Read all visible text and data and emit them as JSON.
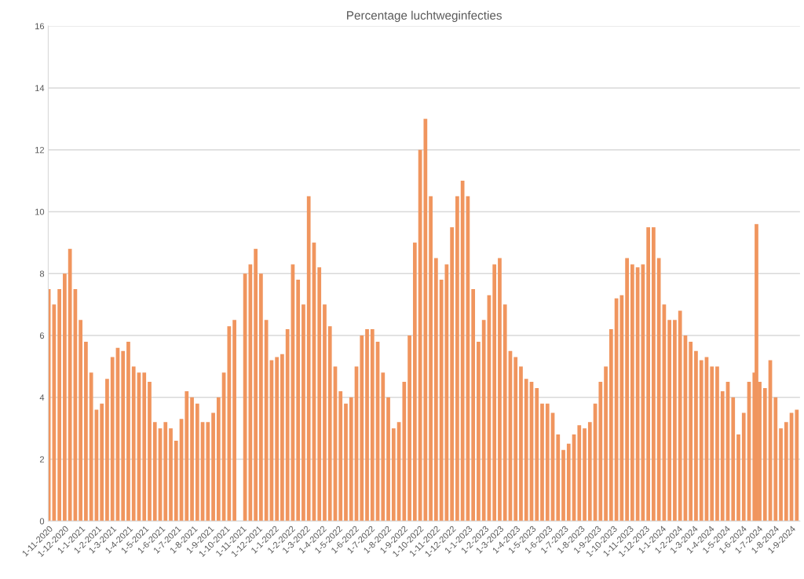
{
  "chart_data": {
    "type": "bar",
    "title": "Percentage luchtweginfecties",
    "color": "#f0955e",
    "grid": "y",
    "ylim": [
      0,
      16
    ],
    "yticks": [
      0,
      2,
      4,
      6,
      8,
      10,
      12,
      14,
      16
    ],
    "xlim": [
      "2020-10-31",
      "2024-09-17"
    ],
    "xticks": [
      {
        "value": "2020-11-01",
        "label": "1-11-2020"
      },
      {
        "value": "2020-12-01",
        "label": "1-12-2020"
      },
      {
        "value": "2021-01-01",
        "label": "1-1-2021"
      },
      {
        "value": "2021-02-01",
        "label": "1-2-2021"
      },
      {
        "value": "2021-03-01",
        "label": "1-3-2021"
      },
      {
        "value": "2021-04-01",
        "label": "1-4-2021"
      },
      {
        "value": "2021-05-01",
        "label": "1-5-2021"
      },
      {
        "value": "2021-06-01",
        "label": "1-6-2021"
      },
      {
        "value": "2021-07-01",
        "label": "1-7-2021"
      },
      {
        "value": "2021-08-01",
        "label": "1-8-2021"
      },
      {
        "value": "2021-09-01",
        "label": "1-9-2021"
      },
      {
        "value": "2021-10-01",
        "label": "1-10-2021"
      },
      {
        "value": "2021-11-01",
        "label": "1-11-2021"
      },
      {
        "value": "2021-12-01",
        "label": "1-12-2021"
      },
      {
        "value": "2022-01-01",
        "label": "1-1-2022"
      },
      {
        "value": "2022-02-01",
        "label": "1-2-2022"
      },
      {
        "value": "2022-03-01",
        "label": "1-3-2022"
      },
      {
        "value": "2022-04-01",
        "label": "1-4-2022"
      },
      {
        "value": "2022-05-01",
        "label": "1-5-2022"
      },
      {
        "value": "2022-06-01",
        "label": "1-6-2022"
      },
      {
        "value": "2022-07-01",
        "label": "1-7-2022"
      },
      {
        "value": "2022-08-01",
        "label": "1-8-2022"
      },
      {
        "value": "2022-09-01",
        "label": "1-9-2022"
      },
      {
        "value": "2022-10-01",
        "label": "1-10-2022"
      },
      {
        "value": "2022-11-01",
        "label": "1-11-2022"
      },
      {
        "value": "2022-12-01",
        "label": "1-12-2022"
      },
      {
        "value": "2023-01-01",
        "label": "1-1-2023"
      },
      {
        "value": "2023-02-01",
        "label": "1-2-2023"
      },
      {
        "value": "2023-03-01",
        "label": "1-3-2023"
      },
      {
        "value": "2023-04-01",
        "label": "1-4-2023"
      },
      {
        "value": "2023-05-01",
        "label": "1-5-2023"
      },
      {
        "value": "2023-06-01",
        "label": "1-6-2023"
      },
      {
        "value": "2023-07-01",
        "label": "1-7-2023"
      },
      {
        "value": "2023-08-01",
        "label": "1-8-2023"
      },
      {
        "value": "2023-09-01",
        "label": "1-9-2023"
      },
      {
        "value": "2023-10-01",
        "label": "1-10-2023"
      },
      {
        "value": "2023-11-01",
        "label": "1-11-2023"
      },
      {
        "value": "2023-12-01",
        "label": "1-12-2023"
      },
      {
        "value": "2024-01-01",
        "label": "1-1-2024"
      },
      {
        "value": "2024-02-01",
        "label": "1-2-2024"
      },
      {
        "value": "2024-03-01",
        "label": "1-3-2024"
      },
      {
        "value": "2024-04-01",
        "label": "1-4-2024"
      },
      {
        "value": "2024-05-01",
        "label": "1-5-2024"
      },
      {
        "value": "2024-06-01",
        "label": "1-6-2024"
      },
      {
        "value": "2024-07-01",
        "label": "1-7-2024"
      },
      {
        "value": "2024-08-01",
        "label": "1-8-2024"
      },
      {
        "value": "2024-09-01",
        "label": "1-9-2024"
      }
    ],
    "x": [
      "2020-11-01",
      "2020-11-11",
      "2020-11-21",
      "2020-12-01",
      "2020-12-11",
      "2020-12-21",
      "2020-12-31",
      "2021-01-10",
      "2021-01-20",
      "2021-01-30",
      "2021-02-09",
      "2021-02-19",
      "2021-03-01",
      "2021-03-11",
      "2021-03-21",
      "2021-03-31",
      "2021-04-10",
      "2021-04-20",
      "2021-04-30",
      "2021-05-10",
      "2021-05-20",
      "2021-05-30",
      "2021-06-09",
      "2021-06-19",
      "2021-06-29",
      "2021-07-09",
      "2021-07-19",
      "2021-07-29",
      "2021-08-08",
      "2021-08-18",
      "2021-08-28",
      "2021-09-07",
      "2021-09-17",
      "2021-09-27",
      "2021-10-07",
      "2021-10-17",
      "2021-10-27",
      "2021-11-06",
      "2021-11-16",
      "2021-11-26",
      "2021-12-06",
      "2021-12-16",
      "2021-12-26",
      "2022-01-05",
      "2022-01-15",
      "2022-01-25",
      "2022-02-04",
      "2022-02-14",
      "2022-02-24",
      "2022-03-06",
      "2022-03-16",
      "2022-03-26",
      "2022-04-05",
      "2022-04-15",
      "2022-04-25",
      "2022-05-05",
      "2022-05-15",
      "2022-05-25",
      "2022-06-04",
      "2022-06-14",
      "2022-06-24",
      "2022-07-04",
      "2022-07-14",
      "2022-07-24",
      "2022-08-03",
      "2022-08-13",
      "2022-08-23",
      "2022-09-02",
      "2022-09-12",
      "2022-09-22",
      "2022-10-02",
      "2022-10-12",
      "2022-10-22",
      "2022-11-01",
      "2022-11-11",
      "2022-11-21",
      "2022-12-01",
      "2022-12-11",
      "2022-12-21",
      "2022-12-31",
      "2023-01-10",
      "2023-01-20",
      "2023-01-30",
      "2023-02-09",
      "2023-02-19",
      "2023-03-01",
      "2023-03-11",
      "2023-03-21",
      "2023-03-31",
      "2023-04-10",
      "2023-04-20",
      "2023-04-30",
      "2023-05-10",
      "2023-05-20",
      "2023-05-30",
      "2023-06-09",
      "2023-06-19",
      "2023-06-29",
      "2023-07-09",
      "2023-07-19",
      "2023-07-29",
      "2023-08-08",
      "2023-08-18",
      "2023-08-28",
      "2023-09-07",
      "2023-09-17",
      "2023-09-27",
      "2023-10-07",
      "2023-10-17",
      "2023-10-27",
      "2023-11-06",
      "2023-11-16",
      "2023-11-26",
      "2023-12-06",
      "2023-12-16",
      "2023-12-26",
      "2024-01-05",
      "2024-01-15",
      "2024-01-25",
      "2024-02-04",
      "2024-02-14",
      "2024-02-24",
      "2024-03-05",
      "2024-03-15",
      "2024-03-25",
      "2024-04-04",
      "2024-04-14",
      "2024-04-24",
      "2024-05-04",
      "2024-05-14",
      "2024-05-24",
      "2024-06-03",
      "2024-06-13",
      "2024-06-23",
      "2024-06-27",
      "2024-07-03",
      "2024-07-13",
      "2024-07-23",
      "2024-08-02",
      "2024-08-12",
      "2024-08-22",
      "2024-09-01",
      "2024-09-11"
    ],
    "values": [
      7.5,
      7.0,
      7.5,
      8.0,
      8.8,
      7.5,
      6.5,
      5.8,
      4.8,
      3.6,
      3.8,
      4.6,
      5.3,
      5.6,
      5.5,
      5.8,
      5.0,
      4.8,
      4.8,
      4.5,
      3.2,
      3.0,
      3.2,
      3.0,
      2.6,
      3.3,
      4.2,
      4.0,
      3.8,
      3.2,
      3.2,
      3.5,
      4.0,
      4.8,
      6.3,
      6.5,
      null,
      8.0,
      8.3,
      8.8,
      8.0,
      6.5,
      5.2,
      5.3,
      5.4,
      6.2,
      8.3,
      7.8,
      7.0,
      10.5,
      9.0,
      8.2,
      7.0,
      6.3,
      5.0,
      4.2,
      3.8,
      4.0,
      5.0,
      6.0,
      6.2,
      6.2,
      5.8,
      4.8,
      4.0,
      3.0,
      3.2,
      4.5,
      6.0,
      9.0,
      12.0,
      13.0,
      10.5,
      8.5,
      7.8,
      8.3,
      9.5,
      10.5,
      11.0,
      10.5,
      7.5,
      5.8,
      6.5,
      7.3,
      8.3,
      8.5,
      7.0,
      5.5,
      5.3,
      5.0,
      4.6,
      4.5,
      4.3,
      3.8,
      3.8,
      3.5,
      2.8,
      2.3,
      2.5,
      2.8,
      3.1,
      3.0,
      3.2,
      3.8,
      4.5,
      5.0,
      6.2,
      7.2,
      7.3,
      8.5,
      8.3,
      8.2,
      8.3,
      9.5,
      9.5,
      8.5,
      7.0,
      6.5,
      6.5,
      6.8,
      6.0,
      5.8,
      5.5,
      5.2,
      5.3,
      5.0,
      5.0,
      4.2,
      4.5,
      4.0,
      2.8,
      3.5,
      4.5,
      4.8,
      9.6,
      4.5,
      4.3,
      5.2,
      4.0,
      3.0,
      3.2,
      3.5,
      3.6
    ]
  }
}
